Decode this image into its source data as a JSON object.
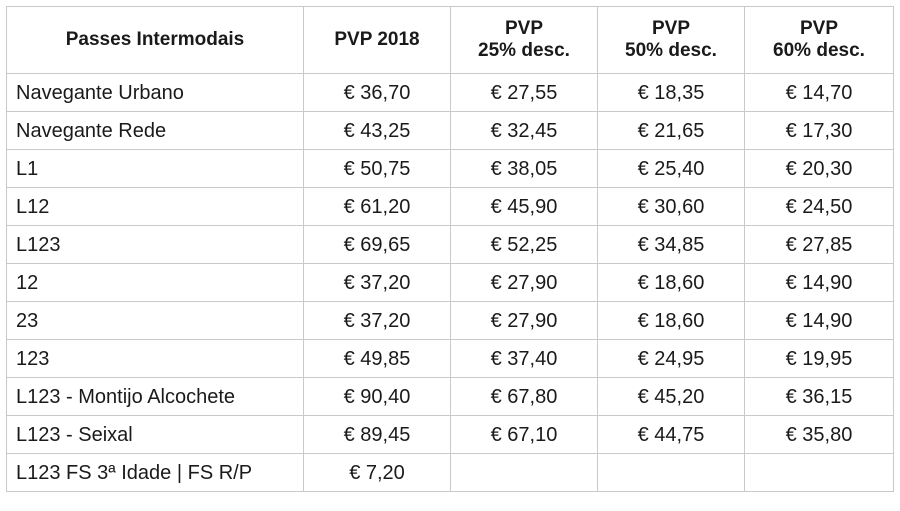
{
  "table": {
    "headers": [
      {
        "line1": "Passes Intermodais",
        "line2": ""
      },
      {
        "line1": "PVP 2018",
        "line2": ""
      },
      {
        "line1": "PVP",
        "line2": "25% desc."
      },
      {
        "line1": "PVP",
        "line2": "50% desc."
      },
      {
        "line1": "PVP",
        "line2": "60% desc."
      }
    ],
    "rows": [
      {
        "name": "Navegante Urbano",
        "pvp2018": "€ 36,70",
        "desc25": "€ 27,55",
        "desc50": "€ 18,35",
        "desc60": "€ 14,70"
      },
      {
        "name": "Navegante Rede",
        "pvp2018": "€ 43,25",
        "desc25": "€ 32,45",
        "desc50": "€ 21,65",
        "desc60": "€ 17,30"
      },
      {
        "name": "L1",
        "pvp2018": "€ 50,75",
        "desc25": "€ 38,05",
        "desc50": "€ 25,40",
        "desc60": "€ 20,30"
      },
      {
        "name": "L12",
        "pvp2018": "€ 61,20",
        "desc25": "€ 45,90",
        "desc50": "€ 30,60",
        "desc60": "€ 24,50"
      },
      {
        "name": "L123",
        "pvp2018": "€ 69,65",
        "desc25": "€ 52,25",
        "desc50": "€ 34,85",
        "desc60": "€ 27,85"
      },
      {
        "name": "12",
        "pvp2018": "€ 37,20",
        "desc25": "€ 27,90",
        "desc50": "€ 18,60",
        "desc60": "€ 14,90"
      },
      {
        "name": "23",
        "pvp2018": "€ 37,20",
        "desc25": "€ 27,90",
        "desc50": "€ 18,60",
        "desc60": "€ 14,90"
      },
      {
        "name": "123",
        "pvp2018": "€ 49,85",
        "desc25": "€ 37,40",
        "desc50": "€ 24,95",
        "desc60": "€ 19,95"
      },
      {
        "name": "L123 - Montijo Alcochete",
        "pvp2018": "€ 90,40",
        "desc25": "€ 67,80",
        "desc50": "€ 45,20",
        "desc60": "€ 36,15"
      },
      {
        "name": "L123 - Seixal",
        "pvp2018": "€ 89,45",
        "desc25": "€ 67,10",
        "desc50": "€ 44,75",
        "desc60": "€ 35,80"
      },
      {
        "name": "L123 FS 3ª Idade | FS R/P",
        "pvp2018": "€ 7,20",
        "desc25": "",
        "desc50": "",
        "desc60": ""
      }
    ]
  }
}
